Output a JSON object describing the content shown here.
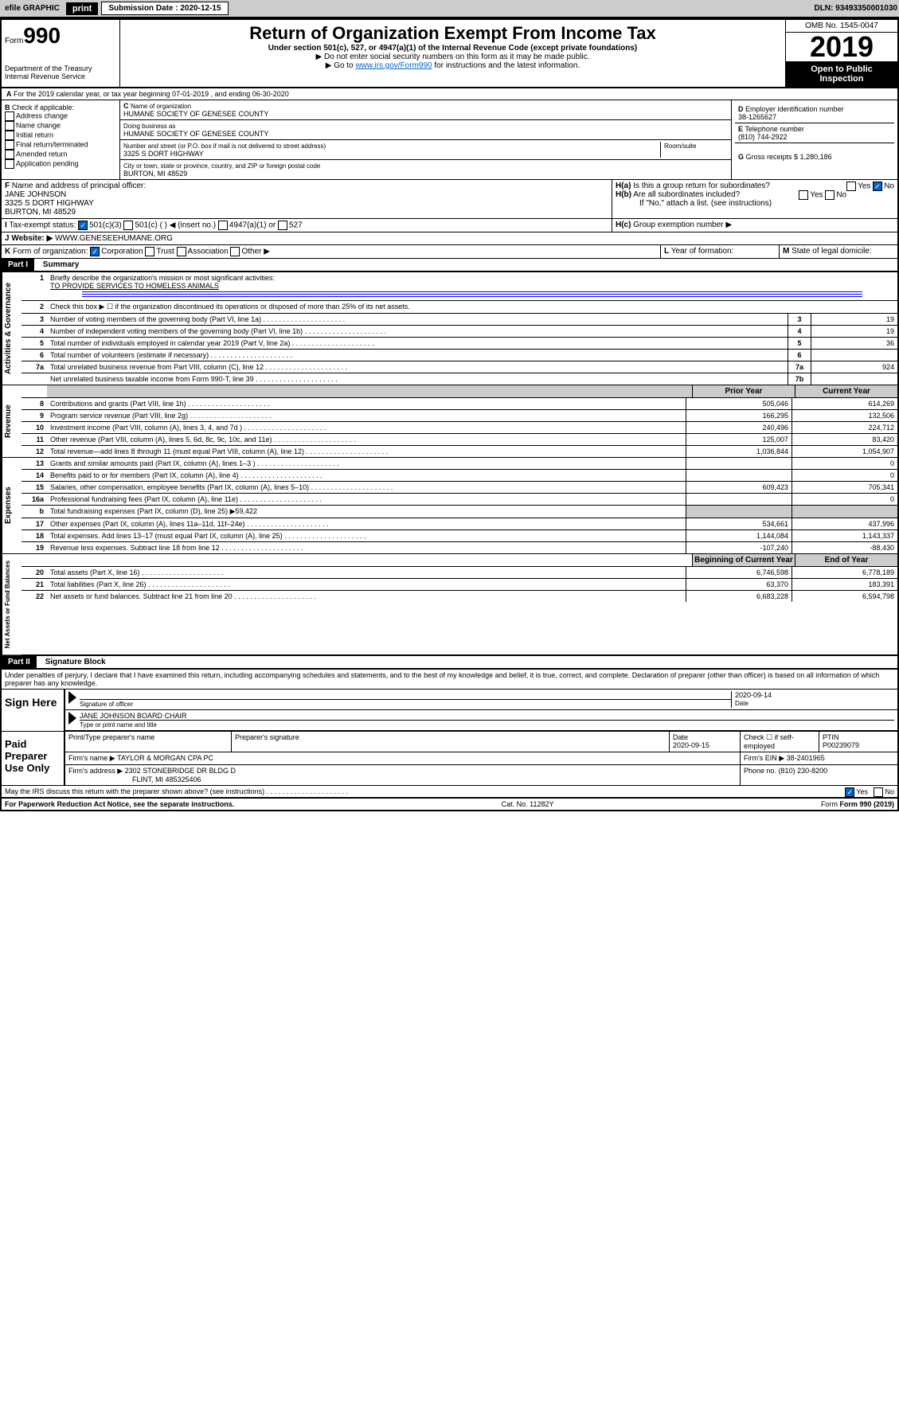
{
  "toolbar": {
    "efile": "efile GRAPHIC",
    "print": "print",
    "sub_label": "Submission Date : 2020-12-15",
    "dln": "DLN: 93493350001030"
  },
  "header": {
    "form_label": "Form",
    "form_num": "990",
    "dept": "Department of the Treasury",
    "irs": "Internal Revenue Service",
    "title": "Return of Organization Exempt From Income Tax",
    "subtitle": "Under section 501(c), 527, or 4947(a)(1) of the Internal Revenue Code (except private foundations)",
    "inst1": "▶ Do not enter social security numbers on this form as it may be made public.",
    "inst2_pre": "▶ Go to ",
    "inst2_link": "www.irs.gov/Form990",
    "inst2_post": " for instructions and the latest information.",
    "omb": "OMB No. 1545-0047",
    "year": "2019",
    "open": "Open to Public Inspection"
  },
  "section_a": "For the 2019 calendar year, or tax year beginning 07-01-2019    , and ending 06-30-2020",
  "box_b": {
    "label": "Check if applicable:",
    "opts": [
      "Address change",
      "Name change",
      "Initial return",
      "Final return/terminated",
      "Amended return",
      "Application pending"
    ]
  },
  "box_c": {
    "name_label": "Name of organization",
    "name": "HUMANE SOCIETY OF GENESEE COUNTY",
    "dba_label": "Doing business as",
    "dba": "HUMANE SOCIETY OF GENESEE COUNTY",
    "addr_label": "Number and street (or P.O. box if mail is not delivered to street address)",
    "addr": "3325 S DORT HIGHWAY",
    "room_label": "Room/suite",
    "city_label": "City or town, state or province, country, and ZIP or foreign postal code",
    "city": "BURTON, MI  48529"
  },
  "box_d": {
    "label": "Employer identification number",
    "val": "38-1265627"
  },
  "box_e": {
    "label": "Telephone number",
    "val": "(810) 744-2922"
  },
  "box_g": {
    "label": "Gross receipts $",
    "val": "1,280,186"
  },
  "box_f": {
    "label": "Name and address of principal officer:",
    "name": "JANE JOHNSON",
    "addr1": "3325 S DORT HIGHWAY",
    "addr2": "BURTON, MI  48529"
  },
  "box_h": {
    "a": "Is this a group return for subordinates?",
    "b": "Are all subordinates included?",
    "note": "If \"No,\" attach a list. (see instructions)",
    "c": "Group exemption number ▶"
  },
  "tax_exempt": {
    "label": "Tax-exempt status:",
    "opt1": "501(c)(3)",
    "opt2": "501(c) (   ) ◀ (insert no.)",
    "opt3": "4947(a)(1) or",
    "opt4": "527"
  },
  "website": {
    "label": "Website: ▶",
    "val": "WWW.GENESEEHUMANE.ORG"
  },
  "box_k": {
    "label": "Form of organization:",
    "opts": [
      "Corporation",
      "Trust",
      "Association",
      "Other ▶"
    ]
  },
  "box_l": "Year of formation:",
  "box_m": "State of legal domicile:",
  "part1": {
    "header": "Part I",
    "title": "Summary",
    "q1": "Briefly describe the organization's mission or most significant activities:",
    "mission": "TO PROVIDE SERVICES TO HOMELESS ANIMALS",
    "q2": "Check this box ▶ ☐  if the organization discontinued its operations or disposed of more than 25% of its net assets.",
    "lines_gov": [
      {
        "n": "3",
        "t": "Number of voting members of the governing body (Part VI, line 1a)",
        "ln": "3",
        "v": "19"
      },
      {
        "n": "4",
        "t": "Number of independent voting members of the governing body (Part VI, line 1b)",
        "ln": "4",
        "v": "19"
      },
      {
        "n": "5",
        "t": "Total number of individuals employed in calendar year 2019 (Part V, line 2a)",
        "ln": "5",
        "v": "36"
      },
      {
        "n": "6",
        "t": "Total number of volunteers (estimate if necessary)",
        "ln": "6",
        "v": ""
      },
      {
        "n": "7a",
        "t": "Total unrelated business revenue from Part VIII, column (C), line 12",
        "ln": "7a",
        "v": "924"
      },
      {
        "n": "",
        "t": "Net unrelated business taxable income from Form 990-T, line 39",
        "ln": "7b",
        "v": ""
      }
    ],
    "col_prior": "Prior Year",
    "col_current": "Current Year",
    "lines_rev": [
      {
        "n": "8",
        "t": "Contributions and grants (Part VIII, line 1h)",
        "p": "505,046",
        "c": "614,269"
      },
      {
        "n": "9",
        "t": "Program service revenue (Part VIII, line 2g)",
        "p": "166,295",
        "c": "132,506"
      },
      {
        "n": "10",
        "t": "Investment income (Part VIII, column (A), lines 3, 4, and 7d )",
        "p": "240,496",
        "c": "224,712"
      },
      {
        "n": "11",
        "t": "Other revenue (Part VIII, column (A), lines 5, 6d, 8c, 9c, 10c, and 11e)",
        "p": "125,007",
        "c": "83,420"
      },
      {
        "n": "12",
        "t": "Total revenue—add lines 8 through 11 (must equal Part VIII, column (A), line 12)",
        "p": "1,036,844",
        "c": "1,054,907"
      }
    ],
    "lines_exp": [
      {
        "n": "13",
        "t": "Grants and similar amounts paid (Part IX, column (A), lines 1–3 )",
        "p": "",
        "c": "0"
      },
      {
        "n": "14",
        "t": "Benefits paid to or for members (Part IX, column (A), line 4)",
        "p": "",
        "c": "0"
      },
      {
        "n": "15",
        "t": "Salaries, other compensation, employee benefits (Part IX, column (A), lines 5–10)",
        "p": "609,423",
        "c": "705,341"
      },
      {
        "n": "16a",
        "t": "Professional fundraising fees (Part IX, column (A), line 11e)",
        "p": "",
        "c": "0"
      },
      {
        "n": "b",
        "t": "Total fundraising expenses (Part IX, column (D), line 25) ▶59,422",
        "p": null,
        "c": null
      },
      {
        "n": "17",
        "t": "Other expenses (Part IX, column (A), lines 11a–11d, 11f–24e)",
        "p": "534,661",
        "c": "437,996"
      },
      {
        "n": "18",
        "t": "Total expenses. Add lines 13–17 (must equal Part IX, column (A), line 25)",
        "p": "1,144,084",
        "c": "1,143,337"
      },
      {
        "n": "19",
        "t": "Revenue less expenses. Subtract line 18 from line 12",
        "p": "-107,240",
        "c": "-88,430"
      }
    ],
    "col_begin": "Beginning of Current Year",
    "col_end": "End of Year",
    "lines_net": [
      {
        "n": "20",
        "t": "Total assets (Part X, line 16)",
        "p": "6,746,598",
        "c": "6,778,189"
      },
      {
        "n": "21",
        "t": "Total liabilities (Part X, line 26)",
        "p": "63,370",
        "c": "183,391"
      },
      {
        "n": "22",
        "t": "Net assets or fund balances. Subtract line 21 from line 20",
        "p": "6,683,228",
        "c": "6,594,798"
      }
    ],
    "vlabel_gov": "Activities & Governance",
    "vlabel_rev": "Revenue",
    "vlabel_exp": "Expenses",
    "vlabel_net": "Net Assets or Fund Balances"
  },
  "part2": {
    "header": "Part II",
    "title": "Signature Block",
    "decl": "Under penalties of perjury, I declare that I have examined this return, including accompanying schedules and statements, and to the best of my knowledge and belief, it is true, correct, and complete. Declaration of preparer (other than officer) is based on all information of which preparer has any knowledge."
  },
  "sign": {
    "label": "Sign Here",
    "sig_officer": "Signature of officer",
    "date": "2020-09-14",
    "date_label": "Date",
    "name": "JANE JOHNSON  BOARD CHAIR",
    "name_label": "Type or print name and title"
  },
  "preparer": {
    "label": "Paid Preparer Use Only",
    "h1": "Print/Type preparer's name",
    "h2": "Preparer's signature",
    "h3": "Date",
    "date": "2020-09-15",
    "h4": "Check ☐ if self-employed",
    "h5": "PTIN",
    "ptin": "P00239079",
    "firm_label": "Firm's name    ▶",
    "firm": "TAYLOR & MORGAN CPA PC",
    "ein_label": "Firm's EIN ▶",
    "ein": "38-2401965",
    "addr_label": "Firm's address ▶",
    "addr1": "2302 STONEBRIDGE DR BLDG D",
    "addr2": "FLINT, MI  485325406",
    "phone_label": "Phone no.",
    "phone": "(810) 230-8200"
  },
  "discuss": {
    "q": "May the IRS discuss this return with the preparer shown above? (see instructions)",
    "yes": "Yes",
    "no": "No"
  },
  "footer": {
    "pra": "For Paperwork Reduction Act Notice, see the separate instructions.",
    "cat": "Cat. No. 11282Y",
    "form": "Form 990 (2019)"
  }
}
